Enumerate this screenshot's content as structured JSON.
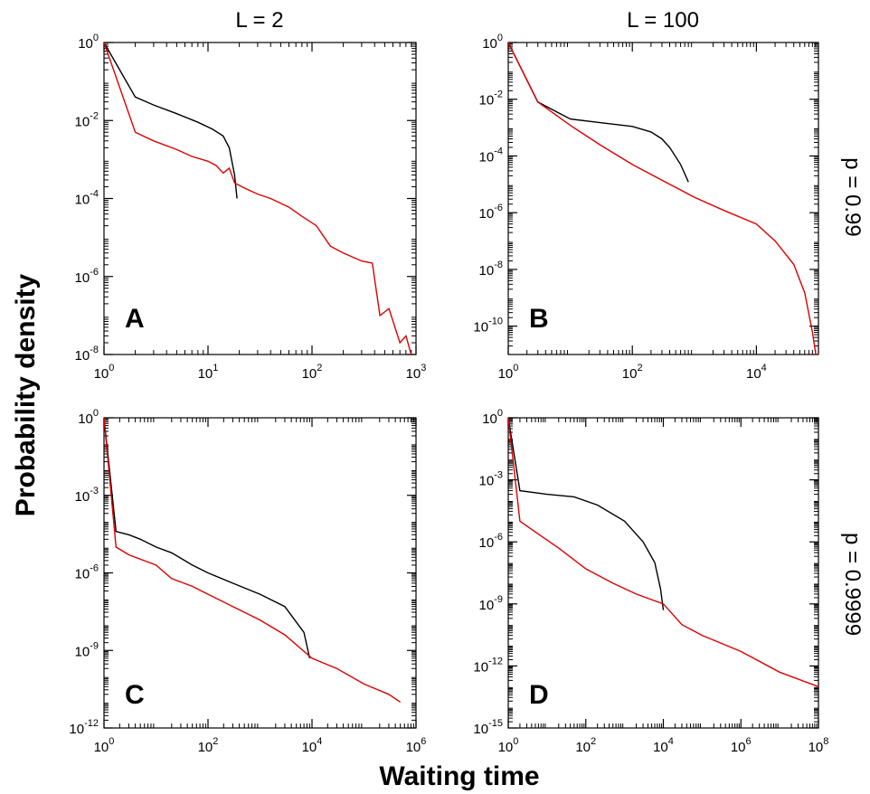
{
  "figure": {
    "xlabel": "Waiting time",
    "ylabel": "Probability density",
    "column_titles": [
      "L = 2",
      "L = 100"
    ],
    "row_titles": [
      "p = 0.99",
      "p = 0.9999"
    ]
  },
  "chart_data": [
    {
      "type": "line",
      "panel": "A",
      "xscale": "log",
      "yscale": "log",
      "xlim": [
        1,
        1000
      ],
      "ylim": [
        1e-08,
        1
      ],
      "xticks": [
        1,
        10,
        100,
        1000
      ],
      "yticks": [
        1e-08,
        1e-06,
        0.0001,
        0.01,
        1
      ],
      "series": [
        {
          "color": "#000000",
          "points": [
            [
              1,
              1
            ],
            [
              2,
              0.04
            ],
            [
              3,
              0.025
            ],
            [
              5,
              0.015
            ],
            [
              8,
              0.009
            ],
            [
              11,
              0.006
            ],
            [
              14,
              0.004
            ],
            [
              16,
              0.002
            ],
            [
              18,
              0.0004
            ],
            [
              19,
              0.0001
            ]
          ]
        },
        {
          "color": "#dd0000",
          "points": [
            [
              1,
              1
            ],
            [
              2,
              0.005
            ],
            [
              3,
              0.003
            ],
            [
              5,
              0.0018
            ],
            [
              7,
              0.0012
            ],
            [
              10,
              0.0009
            ],
            [
              12,
              0.0007
            ],
            [
              14,
              0.00045
            ],
            [
              16,
              0.0006
            ],
            [
              18,
              0.00025
            ],
            [
              22,
              0.00019
            ],
            [
              30,
              0.00013
            ],
            [
              40,
              0.0001
            ],
            [
              60,
              6e-05
            ],
            [
              80,
              3.5e-05
            ],
            [
              110,
              2e-05
            ],
            [
              150,
              6e-06
            ],
            [
              200,
              4e-06
            ],
            [
              300,
              2.5e-06
            ],
            [
              380,
              2.2e-06
            ],
            [
              450,
              1e-07
            ],
            [
              550,
              1.5e-07
            ],
            [
              700,
              2e-08
            ],
            [
              800,
              3e-08
            ],
            [
              950,
              6e-09
            ]
          ]
        }
      ]
    },
    {
      "type": "line",
      "panel": "B",
      "xscale": "log",
      "yscale": "log",
      "xlim": [
        1,
        100000
      ],
      "ylim": [
        1e-11,
        1
      ],
      "xticks": [
        1,
        100,
        10000
      ],
      "yticks": [
        1e-10,
        1e-08,
        1e-06,
        0.0001,
        0.01,
        1
      ],
      "series": [
        {
          "color": "#000000",
          "points": [
            [
              1,
              1
            ],
            [
              3,
              0.008
            ],
            [
              10,
              0.002
            ],
            [
              30,
              0.0015
            ],
            [
              100,
              0.0011
            ],
            [
              200,
              0.0007
            ],
            [
              300,
              0.0004
            ],
            [
              400,
              0.0002
            ],
            [
              600,
              5e-05
            ],
            [
              800,
              1.2e-05
            ]
          ]
        },
        {
          "color": "#dd0000",
          "points": [
            [
              1,
              1
            ],
            [
              3,
              0.008
            ],
            [
              10,
              0.0012
            ],
            [
              30,
              0.00025
            ],
            [
              100,
              5e-05
            ],
            [
              300,
              1.4e-05
            ],
            [
              1000,
              3.5e-06
            ],
            [
              3000,
              1.2e-06
            ],
            [
              10000,
              4e-07
            ],
            [
              20000,
              1e-07
            ],
            [
              40000,
              1.5e-08
            ],
            [
              60000,
              1.5e-09
            ],
            [
              80000,
              6e-11
            ],
            [
              95000,
              5e-12
            ]
          ]
        }
      ]
    },
    {
      "type": "line",
      "panel": "C",
      "xscale": "log",
      "yscale": "log",
      "xlim": [
        1,
        1000000
      ],
      "ylim": [
        1e-12,
        1
      ],
      "xticks": [
        1,
        100,
        10000,
        1000000
      ],
      "yticks": [
        1e-12,
        1e-09,
        1e-06,
        0.001,
        1
      ],
      "series": [
        {
          "color": "#000000",
          "points": [
            [
              1,
              1
            ],
            [
              1.7,
              4e-05
            ],
            [
              3,
              3e-05
            ],
            [
              5,
              2e-05
            ],
            [
              10,
              1e-05
            ],
            [
              20,
              6e-06
            ],
            [
              50,
              2e-06
            ],
            [
              100,
              1e-06
            ],
            [
              300,
              4e-07
            ],
            [
              1000,
              1.5e-07
            ],
            [
              3000,
              5e-08
            ],
            [
              7000,
              5e-09
            ],
            [
              9000,
              5e-10
            ]
          ]
        },
        {
          "color": "#dd0000",
          "points": [
            [
              1,
              1
            ],
            [
              1.7,
              1e-05
            ],
            [
              3,
              5e-06
            ],
            [
              10,
              2e-06
            ],
            [
              20,
              6e-07
            ],
            [
              50,
              3e-07
            ],
            [
              100,
              1.5e-07
            ],
            [
              300,
              5e-08
            ],
            [
              1000,
              1.5e-08
            ],
            [
              3000,
              4e-09
            ],
            [
              10000,
              5e-10
            ],
            [
              30000,
              2e-10
            ],
            [
              100000,
              5e-11
            ],
            [
              300000,
              2e-11
            ],
            [
              500000,
              1e-11
            ]
          ]
        }
      ]
    },
    {
      "type": "line",
      "panel": "D",
      "xscale": "log",
      "yscale": "log",
      "xlim": [
        1,
        100000000
      ],
      "ylim": [
        1e-15,
        1
      ],
      "xticks": [
        1,
        100,
        10000,
        1000000,
        100000000
      ],
      "yticks": [
        1e-15,
        1e-12,
        1e-09,
        1e-06,
        0.001,
        1
      ],
      "series": [
        {
          "color": "#000000",
          "points": [
            [
              1,
              1
            ],
            [
              2,
              0.0003
            ],
            [
              10,
              0.0002
            ],
            [
              50,
              0.00015
            ],
            [
              200,
              6e-05
            ],
            [
              1000,
              1e-05
            ],
            [
              3000,
              1e-06
            ],
            [
              6000,
              1e-07
            ],
            [
              8500,
              5e-09
            ],
            [
              10000,
              5e-10
            ]
          ]
        },
        {
          "color": "#dd0000",
          "points": [
            [
              1,
              1
            ],
            [
              2,
              1e-05
            ],
            [
              5,
              3e-06
            ],
            [
              20,
              5e-07
            ],
            [
              100,
              5e-08
            ],
            [
              500,
              1e-08
            ],
            [
              2000,
              3e-09
            ],
            [
              10000,
              1e-09
            ],
            [
              30000,
              1e-10
            ],
            [
              100000,
              3e-11
            ],
            [
              1000000,
              5e-12
            ],
            [
              10000000,
              5e-13
            ],
            [
              100000000,
              1e-13
            ]
          ]
        }
      ]
    }
  ]
}
